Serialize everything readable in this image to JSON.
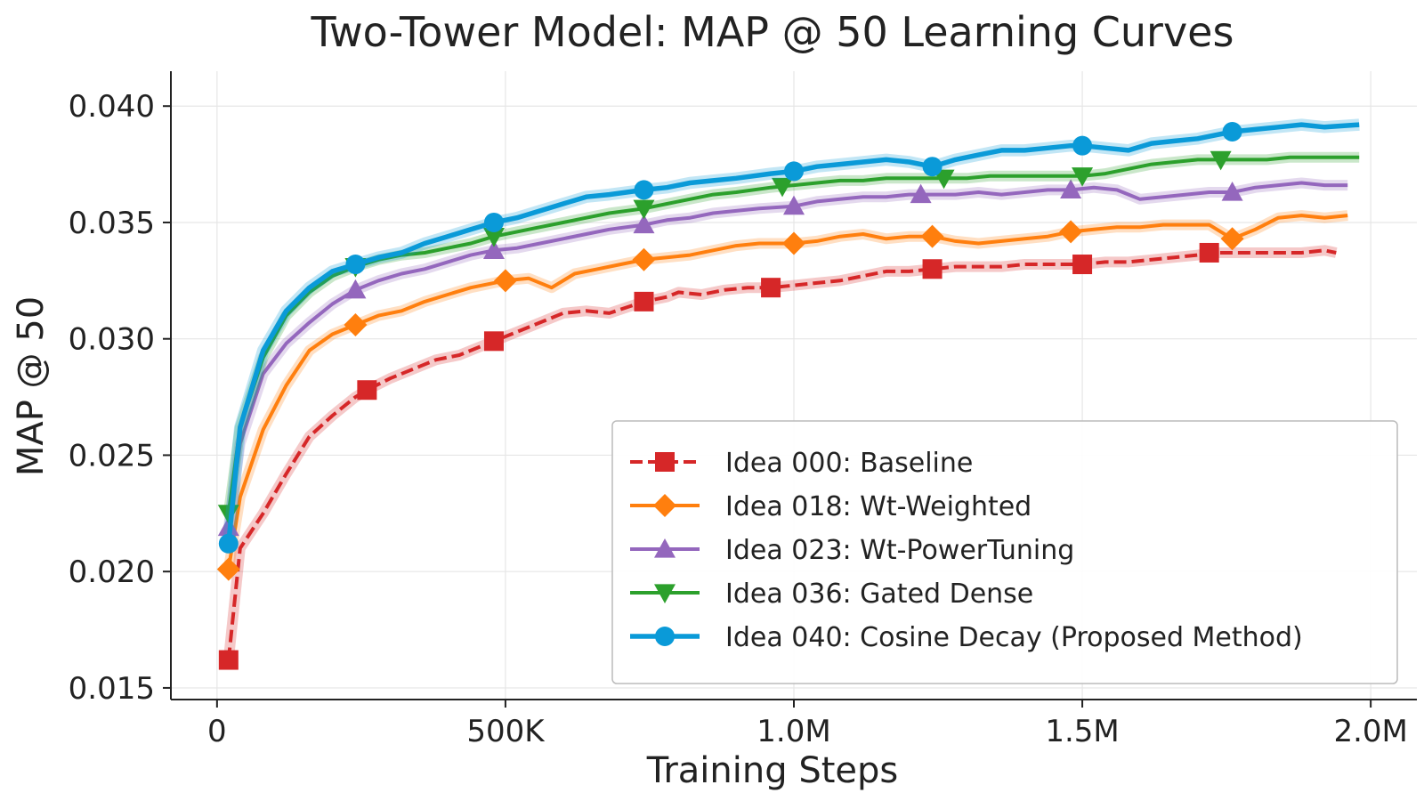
{
  "chart_data": {
    "type": "line",
    "title": "Two-Tower Model: MAP @ 50 Learning Curves",
    "xlabel": "Training Steps",
    "ylabel": "MAP @ 50",
    "xlim": [
      -80000,
      2080000
    ],
    "ylim": [
      0.0145,
      0.0415
    ],
    "x_ticks": [
      0,
      500000,
      1000000,
      1500000,
      2000000
    ],
    "x_tick_labels": [
      "0",
      "500K",
      "1.0M",
      "1.5M",
      "2.0M"
    ],
    "y_ticks": [
      0.015,
      0.02,
      0.025,
      0.03,
      0.035,
      0.04
    ],
    "y_tick_labels": [
      "0.015",
      "0.020",
      "0.025",
      "0.030",
      "0.035",
      "0.040"
    ],
    "grid": true,
    "legend_position": "lower-right",
    "series": [
      {
        "name": "Idea 000: Baseline",
        "color": "#d62728",
        "marker": "square",
        "dashed": true,
        "x": [
          20000,
          40000,
          80000,
          120000,
          160000,
          200000,
          240000,
          260000,
          300000,
          340000,
          380000,
          420000,
          460000,
          480000,
          520000,
          560000,
          600000,
          640000,
          680000,
          740000,
          780000,
          800000,
          840000,
          880000,
          920000,
          960000,
          1000000,
          1040000,
          1080000,
          1120000,
          1160000,
          1200000,
          1240000,
          1280000,
          1320000,
          1360000,
          1400000,
          1440000,
          1480000,
          1500000,
          1540000,
          1580000,
          1620000,
          1660000,
          1700000,
          1720000,
          1760000,
          1800000,
          1840000,
          1880000,
          1920000,
          1940000
        ],
        "values": [
          0.0162,
          0.021,
          0.0225,
          0.0242,
          0.0258,
          0.0267,
          0.0275,
          0.0278,
          0.0283,
          0.0287,
          0.0291,
          0.0293,
          0.0297,
          0.0299,
          0.0303,
          0.0307,
          0.0311,
          0.0312,
          0.0311,
          0.0316,
          0.0318,
          0.032,
          0.0319,
          0.0321,
          0.0322,
          0.0322,
          0.0323,
          0.0324,
          0.0325,
          0.0327,
          0.0329,
          0.0329,
          0.033,
          0.0331,
          0.0331,
          0.0331,
          0.0332,
          0.0332,
          0.0332,
          0.0332,
          0.0333,
          0.0333,
          0.0334,
          0.0335,
          0.0336,
          0.0337,
          0.0337,
          0.0337,
          0.0337,
          0.0337,
          0.0338,
          0.0337
        ],
        "marker_x": [
          20000,
          260000,
          480000,
          740000,
          960000,
          1240000,
          1500000,
          1720000
        ]
      },
      {
        "name": "Idea 018: Wt-Weighted",
        "color": "#ff7f0e",
        "marker": "diamond",
        "dashed": false,
        "x": [
          20000,
          40000,
          80000,
          120000,
          160000,
          200000,
          240000,
          280000,
          320000,
          360000,
          400000,
          440000,
          480000,
          500000,
          540000,
          580000,
          620000,
          660000,
          700000,
          740000,
          780000,
          820000,
          860000,
          900000,
          940000,
          1000000,
          1040000,
          1080000,
          1120000,
          1160000,
          1200000,
          1240000,
          1280000,
          1320000,
          1360000,
          1400000,
          1440000,
          1480000,
          1520000,
          1560000,
          1600000,
          1640000,
          1680000,
          1720000,
          1760000,
          1800000,
          1840000,
          1880000,
          1920000,
          1960000
        ],
        "values": [
          0.0201,
          0.0232,
          0.0261,
          0.028,
          0.0295,
          0.0302,
          0.0306,
          0.031,
          0.0312,
          0.0316,
          0.0319,
          0.0322,
          0.0324,
          0.0325,
          0.0326,
          0.0322,
          0.0328,
          0.033,
          0.0332,
          0.0334,
          0.0335,
          0.0336,
          0.0338,
          0.034,
          0.0341,
          0.0341,
          0.0342,
          0.0344,
          0.0345,
          0.0343,
          0.0344,
          0.0344,
          0.0342,
          0.0341,
          0.0342,
          0.0343,
          0.0344,
          0.0346,
          0.0347,
          0.0348,
          0.0348,
          0.0349,
          0.0349,
          0.0349,
          0.0343,
          0.0347,
          0.0352,
          0.0353,
          0.0352,
          0.0353
        ],
        "marker_x": [
          20000,
          240000,
          500000,
          740000,
          1000000,
          1240000,
          1480000,
          1760000
        ]
      },
      {
        "name": "Idea 023: Wt-PowerTuning",
        "color": "#9467bd",
        "marker": "triangle-up",
        "dashed": false,
        "x": [
          20000,
          40000,
          80000,
          120000,
          160000,
          200000,
          240000,
          280000,
          320000,
          360000,
          400000,
          440000,
          480000,
          520000,
          560000,
          600000,
          640000,
          680000,
          740000,
          780000,
          820000,
          860000,
          900000,
          940000,
          1000000,
          1040000,
          1080000,
          1120000,
          1160000,
          1200000,
          1240000,
          1280000,
          1320000,
          1360000,
          1400000,
          1440000,
          1480000,
          1520000,
          1560000,
          1600000,
          1640000,
          1680000,
          1720000,
          1760000,
          1800000,
          1840000,
          1880000,
          1920000,
          1960000
        ],
        "values": [
          0.0219,
          0.0255,
          0.0285,
          0.0298,
          0.0307,
          0.0315,
          0.0321,
          0.0325,
          0.0328,
          0.033,
          0.0333,
          0.0336,
          0.0338,
          0.0339,
          0.0341,
          0.0343,
          0.0345,
          0.0347,
          0.0349,
          0.0351,
          0.0352,
          0.0354,
          0.0355,
          0.0356,
          0.0357,
          0.0359,
          0.036,
          0.0361,
          0.0361,
          0.0362,
          0.0362,
          0.0362,
          0.0363,
          0.0362,
          0.0363,
          0.0364,
          0.0364,
          0.0365,
          0.0364,
          0.036,
          0.0361,
          0.0362,
          0.0363,
          0.0363,
          0.0365,
          0.0366,
          0.0367,
          0.0366,
          0.0366
        ],
        "marker_x": [
          20000,
          240000,
          480000,
          740000,
          1000000,
          1220000,
          1480000,
          1760000
        ]
      },
      {
        "name": "Idea 036: Gated Dense",
        "color": "#2ca02c",
        "marker": "triangle-down",
        "dashed": false,
        "x": [
          20000,
          40000,
          80000,
          120000,
          160000,
          200000,
          240000,
          280000,
          320000,
          360000,
          400000,
          440000,
          480000,
          520000,
          560000,
          600000,
          640000,
          680000,
          740000,
          780000,
          820000,
          860000,
          900000,
          960000,
          1000000,
          1040000,
          1080000,
          1120000,
          1160000,
          1200000,
          1260000,
          1300000,
          1340000,
          1380000,
          1420000,
          1460000,
          1500000,
          1540000,
          1580000,
          1620000,
          1660000,
          1700000,
          1740000,
          1780000,
          1820000,
          1860000,
          1900000,
          1940000,
          1980000
        ],
        "values": [
          0.0225,
          0.0262,
          0.0292,
          0.031,
          0.032,
          0.0327,
          0.0331,
          0.0334,
          0.0336,
          0.0337,
          0.0339,
          0.0341,
          0.0344,
          0.0346,
          0.0348,
          0.035,
          0.0352,
          0.0354,
          0.0356,
          0.0358,
          0.036,
          0.0362,
          0.0363,
          0.0365,
          0.0366,
          0.0367,
          0.0368,
          0.0368,
          0.0369,
          0.0369,
          0.0369,
          0.0369,
          0.037,
          0.037,
          0.037,
          0.037,
          0.037,
          0.0371,
          0.0373,
          0.0375,
          0.0376,
          0.0377,
          0.0377,
          0.0377,
          0.0377,
          0.0378,
          0.0378,
          0.0378,
          0.0378
        ],
        "marker_x": [
          20000,
          240000,
          480000,
          740000,
          980000,
          1260000,
          1500000,
          1740000
        ]
      },
      {
        "name": "Idea 040: Cosine Decay (Proposed Method)",
        "color": "#0a9ad8",
        "marker": "circle",
        "dashed": false,
        "x": [
          20000,
          40000,
          80000,
          120000,
          160000,
          200000,
          240000,
          280000,
          320000,
          360000,
          400000,
          440000,
          480000,
          520000,
          560000,
          600000,
          640000,
          680000,
          740000,
          780000,
          820000,
          860000,
          900000,
          960000,
          1000000,
          1040000,
          1080000,
          1120000,
          1160000,
          1200000,
          1240000,
          1280000,
          1320000,
          1360000,
          1400000,
          1440000,
          1480000,
          1500000,
          1540000,
          1580000,
          1620000,
          1660000,
          1700000,
          1760000,
          1800000,
          1840000,
          1880000,
          1920000,
          1980000
        ],
        "values": [
          0.0212,
          0.0262,
          0.0295,
          0.0312,
          0.0322,
          0.0329,
          0.0332,
          0.0335,
          0.0337,
          0.0341,
          0.0344,
          0.0347,
          0.035,
          0.0352,
          0.0355,
          0.0358,
          0.0361,
          0.0362,
          0.0364,
          0.0365,
          0.0367,
          0.0368,
          0.0369,
          0.0371,
          0.0372,
          0.0374,
          0.0375,
          0.0376,
          0.0377,
          0.0376,
          0.0374,
          0.0377,
          0.0379,
          0.0381,
          0.0381,
          0.0382,
          0.0383,
          0.0383,
          0.0382,
          0.0381,
          0.0384,
          0.0385,
          0.0386,
          0.0389,
          0.039,
          0.0391,
          0.0392,
          0.0391,
          0.0392
        ],
        "marker_x": [
          20000,
          240000,
          480000,
          740000,
          1000000,
          1240000,
          1500000,
          1760000
        ]
      }
    ]
  }
}
